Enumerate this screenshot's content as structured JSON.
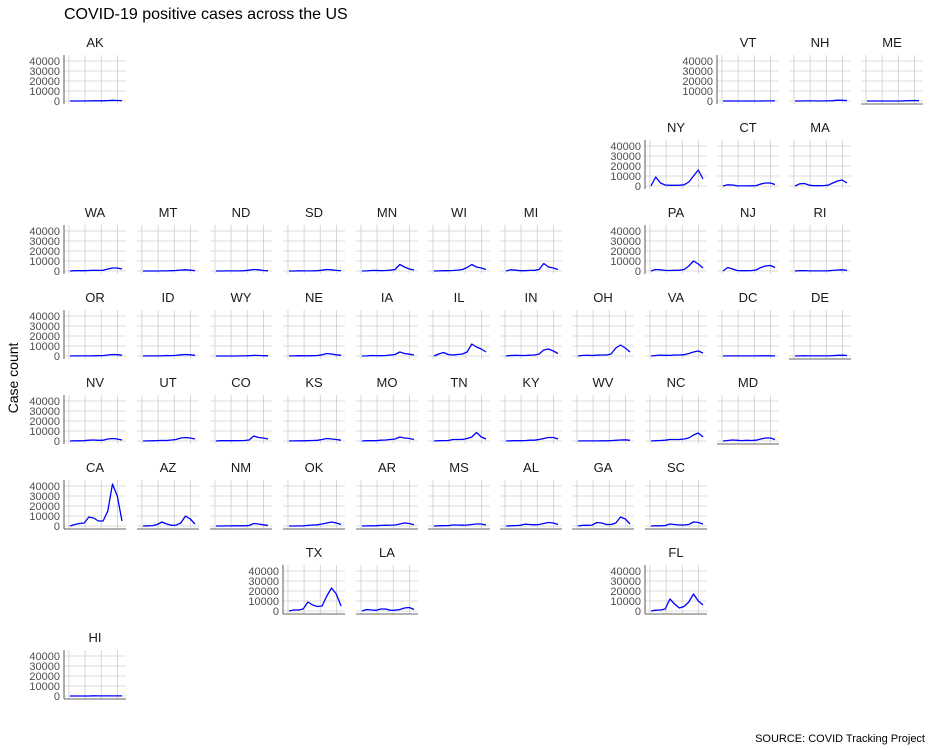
{
  "chart_data": {
    "type": "line",
    "title": "COVID-19 positive cases across the US",
    "ylabel": "Case count",
    "xlabel": "",
    "caption": "SOURCE: COVID Tracking Project",
    "ylim": [
      -3000,
      46000
    ],
    "yticks": [
      0,
      10000,
      20000,
      30000,
      40000
    ],
    "ytick_labels": [
      "0",
      "10000",
      "20000",
      "30000",
      "40000"
    ],
    "grid": true,
    "x_periods": 12,
    "color": "#0000ff",
    "panels": [
      {
        "state": "AK",
        "values": [
          0,
          0,
          0,
          50,
          100,
          200,
          200,
          250,
          400,
          700,
          500,
          300
        ]
      },
      {
        "state": "VT",
        "values": [
          0,
          30,
          30,
          20,
          20,
          20,
          20,
          30,
          50,
          100,
          120,
          80
        ]
      },
      {
        "state": "NH",
        "values": [
          0,
          50,
          80,
          80,
          60,
          50,
          60,
          80,
          300,
          800,
          700,
          400
        ]
      },
      {
        "state": "ME",
        "values": [
          0,
          30,
          40,
          50,
          40,
          30,
          30,
          50,
          150,
          400,
          500,
          300
        ]
      },
      {
        "state": "NY",
        "values": [
          0,
          9000,
          3000,
          1000,
          700,
          700,
          800,
          1200,
          4000,
          10000,
          16000,
          7000
        ]
      },
      {
        "state": "CT",
        "values": [
          0,
          1200,
          1000,
          200,
          100,
          100,
          150,
          400,
          2000,
          3000,
          3000,
          1500
        ]
      },
      {
        "state": "MA",
        "values": [
          0,
          2200,
          2500,
          800,
          300,
          300,
          400,
          800,
          3000,
          5000,
          6000,
          3000
        ]
      },
      {
        "state": "WA",
        "values": [
          0,
          300,
          300,
          300,
          500,
          700,
          600,
          700,
          2000,
          3000,
          3000,
          2000
        ]
      },
      {
        "state": "MT",
        "values": [
          0,
          20,
          20,
          20,
          50,
          150,
          300,
          500,
          1000,
          1200,
          800,
          400
        ]
      },
      {
        "state": "ND",
        "values": [
          0,
          20,
          50,
          50,
          50,
          100,
          300,
          800,
          1500,
          1200,
          500,
          200
        ]
      },
      {
        "state": "SD",
        "values": [
          0,
          30,
          200,
          100,
          50,
          100,
          300,
          800,
          1500,
          1200,
          600,
          300
        ]
      },
      {
        "state": "MN",
        "values": [
          0,
          100,
          500,
          600,
          300,
          500,
          800,
          1500,
          6500,
          4000,
          2000,
          1000
        ]
      },
      {
        "state": "WI",
        "values": [
          0,
          100,
          300,
          300,
          500,
          900,
          1500,
          3500,
          6500,
          4000,
          3000,
          1500
        ]
      },
      {
        "state": "MI",
        "values": [
          0,
          1200,
          800,
          300,
          300,
          600,
          700,
          1500,
          7500,
          4000,
          3000,
          1500
        ]
      },
      {
        "state": "PA",
        "values": [
          0,
          1500,
          1200,
          600,
          500,
          700,
          800,
          1500,
          5000,
          10000,
          7000,
          3000
        ]
      },
      {
        "state": "NJ",
        "values": [
          0,
          3500,
          2000,
          500,
          300,
          300,
          400,
          1000,
          3500,
          5000,
          5500,
          3500
        ]
      },
      {
        "state": "RI",
        "values": [
          0,
          300,
          400,
          100,
          50,
          50,
          100,
          200,
          600,
          1000,
          1200,
          600
        ]
      },
      {
        "state": "OR",
        "values": [
          0,
          50,
          50,
          50,
          150,
          250,
          300,
          400,
          1000,
          1500,
          1300,
          800
        ]
      },
      {
        "state": "ID",
        "values": [
          0,
          50,
          50,
          50,
          200,
          500,
          400,
          600,
          1200,
          1500,
          1200,
          700
        ]
      },
      {
        "state": "WY",
        "values": [
          0,
          10,
          10,
          20,
          30,
          50,
          100,
          300,
          600,
          500,
          300,
          200
        ]
      },
      {
        "state": "NE",
        "values": [
          0,
          50,
          300,
          200,
          200,
          300,
          500,
          1200,
          2500,
          2000,
          1200,
          700
        ]
      },
      {
        "state": "IA",
        "values": [
          0,
          100,
          500,
          400,
          300,
          500,
          1000,
          1500,
          4000,
          2500,
          1800,
          1000
        ]
      },
      {
        "state": "IL",
        "values": [
          0,
          2000,
          3500,
          1500,
          1000,
          1500,
          2000,
          4000,
          12000,
          9000,
          7000,
          4000
        ]
      },
      {
        "state": "IN",
        "values": [
          0,
          500,
          700,
          500,
          500,
          800,
          1000,
          2000,
          6000,
          7000,
          5000,
          2500
        ]
      },
      {
        "state": "OH",
        "values": [
          0,
          600,
          700,
          500,
          800,
          1000,
          1000,
          2000,
          8000,
          11000,
          8000,
          4000
        ]
      },
      {
        "state": "VA",
        "values": [
          0,
          500,
          900,
          700,
          600,
          1000,
          1000,
          1300,
          2500,
          4000,
          5000,
          3000
        ]
      },
      {
        "state": "DC",
        "values": [
          0,
          100,
          100,
          50,
          50,
          50,
          60,
          80,
          200,
          250,
          250,
          150
        ]
      },
      {
        "state": "DE",
        "values": [
          0,
          100,
          200,
          100,
          50,
          60,
          100,
          150,
          400,
          700,
          800,
          500
        ]
      },
      {
        "state": "NV",
        "values": [
          0,
          200,
          200,
          300,
          800,
          1000,
          700,
          800,
          2000,
          2500,
          2000,
          1000
        ]
      },
      {
        "state": "UT",
        "values": [
          0,
          100,
          200,
          400,
          600,
          500,
          1000,
          1500,
          3000,
          3500,
          3000,
          2000
        ]
      },
      {
        "state": "CO",
        "values": [
          0,
          300,
          400,
          300,
          300,
          400,
          500,
          1000,
          5000,
          3500,
          3000,
          2000
        ]
      },
      {
        "state": "KS",
        "values": [
          0,
          100,
          200,
          200,
          300,
          500,
          700,
          1500,
          2500,
          2000,
          1500,
          800
        ]
      },
      {
        "state": "MO",
        "values": [
          0,
          300,
          300,
          300,
          800,
          1000,
          1500,
          2000,
          4000,
          3000,
          2500,
          1500
        ]
      },
      {
        "state": "TN",
        "values": [
          0,
          300,
          400,
          500,
          1500,
          1500,
          1500,
          2500,
          4000,
          8500,
          4000,
          2000
        ]
      },
      {
        "state": "KY",
        "values": [
          0,
          200,
          300,
          300,
          400,
          800,
          800,
          1500,
          2500,
          3500,
          3500,
          2000
        ]
      },
      {
        "state": "WV",
        "values": [
          0,
          50,
          50,
          50,
          100,
          200,
          200,
          400,
          700,
          1000,
          1200,
          700
        ]
      },
      {
        "state": "NC",
        "values": [
          0,
          300,
          500,
          800,
          1500,
          1500,
          1500,
          2000,
          3000,
          6000,
          8000,
          4000
        ]
      },
      {
        "state": "MD",
        "values": [
          0,
          500,
          1000,
          700,
          400,
          700,
          500,
          800,
          2000,
          3000,
          3000,
          1500
        ]
      },
      {
        "state": "CA",
        "values": [
          0,
          1500,
          2500,
          3000,
          9000,
          8000,
          5000,
          5000,
          15000,
          42000,
          30000,
          5000
        ]
      },
      {
        "state": "AZ",
        "values": [
          0,
          200,
          400,
          1500,
          4000,
          2000,
          700,
          800,
          3000,
          10000,
          7000,
          2000
        ]
      },
      {
        "state": "NM",
        "values": [
          0,
          50,
          100,
          150,
          200,
          200,
          200,
          500,
          2500,
          2000,
          1200,
          600
        ]
      },
      {
        "state": "OK",
        "values": [
          0,
          50,
          100,
          200,
          600,
          1000,
          1200,
          2000,
          3000,
          4000,
          3000,
          1500
        ]
      },
      {
        "state": "AR",
        "values": [
          0,
          100,
          200,
          300,
          600,
          700,
          900,
          1000,
          2000,
          3000,
          2500,
          1200
        ]
      },
      {
        "state": "MS",
        "values": [
          0,
          200,
          300,
          400,
          1000,
          1000,
          800,
          1000,
          1500,
          2000,
          2000,
          1000
        ]
      },
      {
        "state": "AL",
        "values": [
          0,
          200,
          400,
          700,
          1800,
          1500,
          1200,
          1500,
          2500,
          3500,
          3000,
          1500
        ]
      },
      {
        "state": "GA",
        "values": [
          0,
          700,
          700,
          900,
          3500,
          3000,
          1500,
          1500,
          3000,
          9000,
          7000,
          2000
        ]
      },
      {
        "state": "SC",
        "values": [
          0,
          200,
          200,
          500,
          2000,
          1500,
          1000,
          1000,
          1500,
          4000,
          3500,
          2000
        ]
      },
      {
        "state": "TX",
        "values": [
          0,
          1000,
          1000,
          2000,
          9000,
          6000,
          4500,
          5000,
          15000,
          23000,
          17000,
          5000
        ]
      },
      {
        "state": "LA",
        "values": [
          0,
          1500,
          1000,
          700,
          2000,
          2000,
          700,
          800,
          1500,
          3000,
          3500,
          1500
        ]
      },
      {
        "state": "FL",
        "values": [
          0,
          800,
          1000,
          2000,
          12000,
          7000,
          3000,
          4500,
          9000,
          17000,
          10000,
          6000
        ]
      },
      {
        "state": "HI",
        "values": [
          0,
          10,
          10,
          10,
          50,
          200,
          100,
          100,
          100,
          150,
          150,
          100
        ]
      }
    ]
  }
}
